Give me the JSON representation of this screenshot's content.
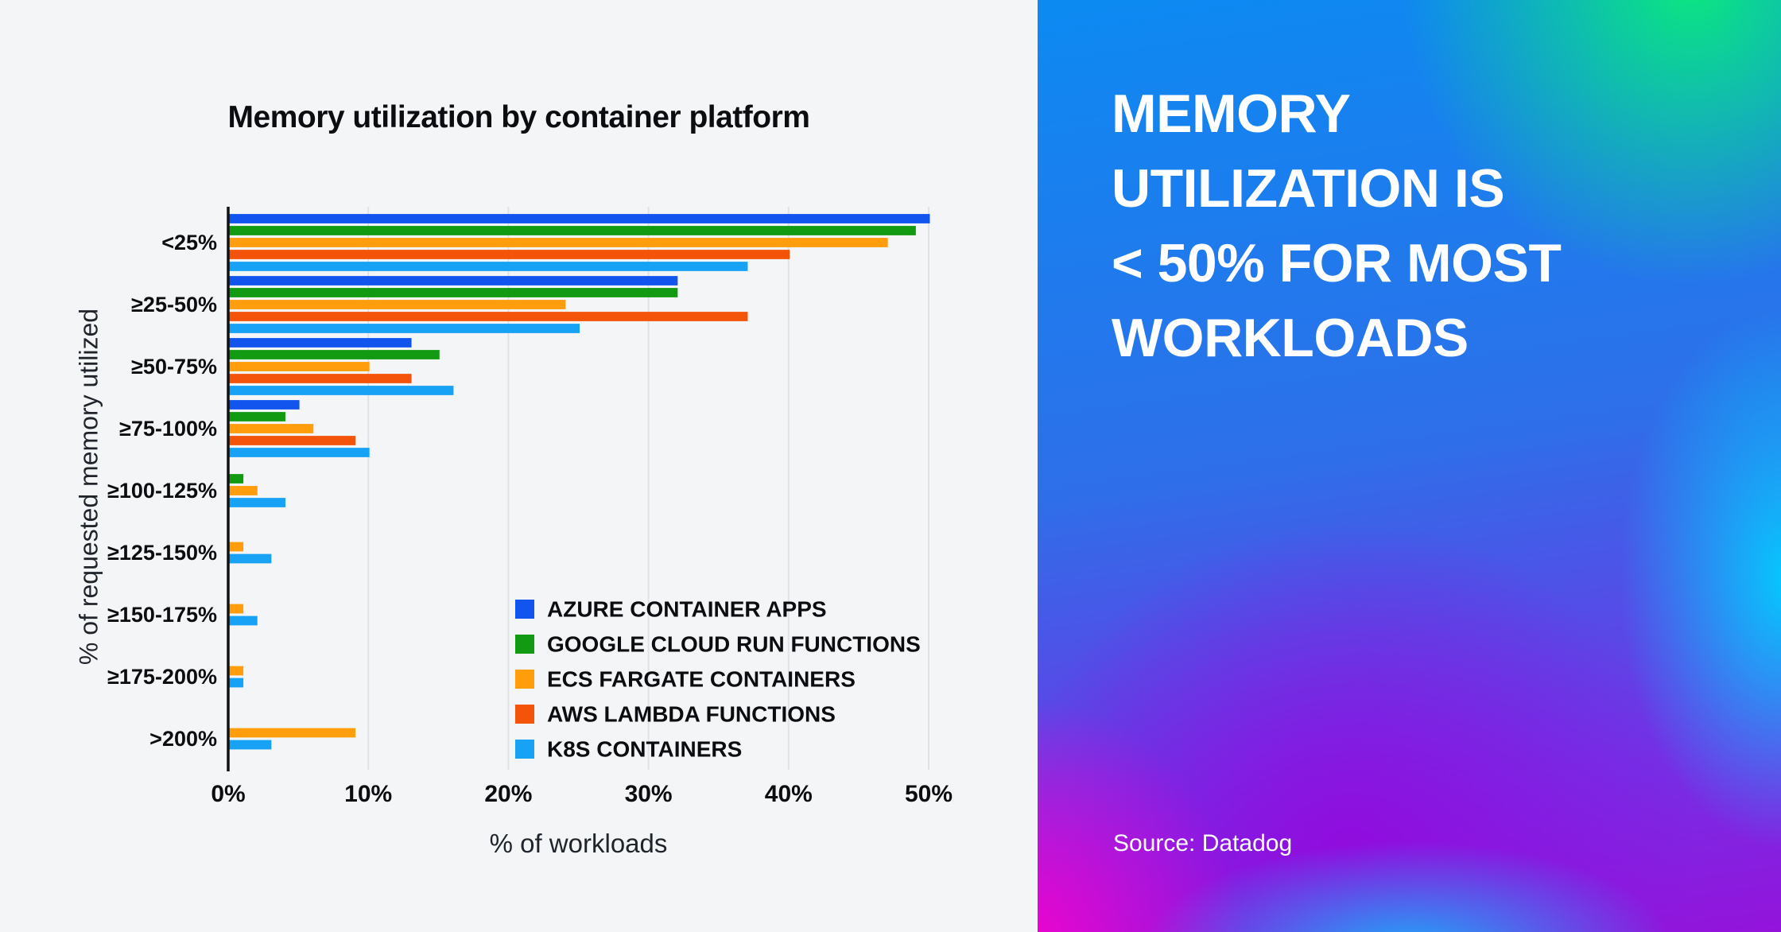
{
  "left_panel": {
    "title": "Memory utilization by container platform",
    "x_axis_title": "% of workloads",
    "y_axis_title": "% of requested memory utilized"
  },
  "right_panel": {
    "headline": "MEMORY\nUTILIZATION IS\n< 50% FOR MOST\nWORKLOADS",
    "source": "Source: Datadog"
  },
  "colors": {
    "left_background": "#f3f5f7",
    "gridline": "#dfe3e9",
    "axis_line": "#111111",
    "text_dark": "#0b0d10",
    "headline_text": "#ffffff",
    "gradient_blue": "#0c8af2",
    "gradient_green": "#0be87e",
    "gradient_cyan": "#00d0ff",
    "gradient_magenta": "#f202ce",
    "gradient_purple": "#9413db"
  },
  "chart_data": {
    "type": "bar",
    "orientation": "horizontal",
    "title": "Memory utilization by container platform",
    "xlabel": "% of workloads",
    "ylabel": "% of requested memory utilized",
    "xlim": [
      0,
      50
    ],
    "x_ticks": [
      "0%",
      "10%",
      "20%",
      "30%",
      "40%",
      "50%"
    ],
    "x_tick_values": [
      0,
      10,
      20,
      30,
      40,
      50
    ],
    "grid": true,
    "legend_position": "inside-bottom-right",
    "categories": [
      "<25%",
      "≥25-50%",
      "≥50-75%",
      "≥75-100%",
      "≥100-125%",
      "≥125-150%",
      "≥150-175%",
      "≥175-200%",
      ">200%"
    ],
    "series": [
      {
        "name": "AZURE CONTAINER APPS",
        "color": "#1155ee",
        "values": [
          50,
          32,
          13,
          5,
          0,
          0,
          0,
          0,
          0
        ]
      },
      {
        "name": "GOOGLE CLOUD RUN FUNCTIONS",
        "color": "#129b12",
        "values": [
          49,
          32,
          15,
          4,
          1,
          0,
          0,
          0,
          0
        ]
      },
      {
        "name": "ECS FARGATE CONTAINERS",
        "color": "#ff9d0d",
        "values": [
          47,
          24,
          10,
          6,
          2,
          1,
          1,
          1,
          9
        ]
      },
      {
        "name": "AWS LAMBDA FUNCTIONS",
        "color": "#f4540a",
        "values": [
          40,
          37,
          13,
          9,
          0,
          0,
          0,
          0,
          0
        ]
      },
      {
        "name": "K8S CONTAINERS",
        "color": "#18a2f5",
        "values": [
          37,
          25,
          16,
          10,
          4,
          3,
          2,
          1,
          3
        ]
      }
    ]
  }
}
